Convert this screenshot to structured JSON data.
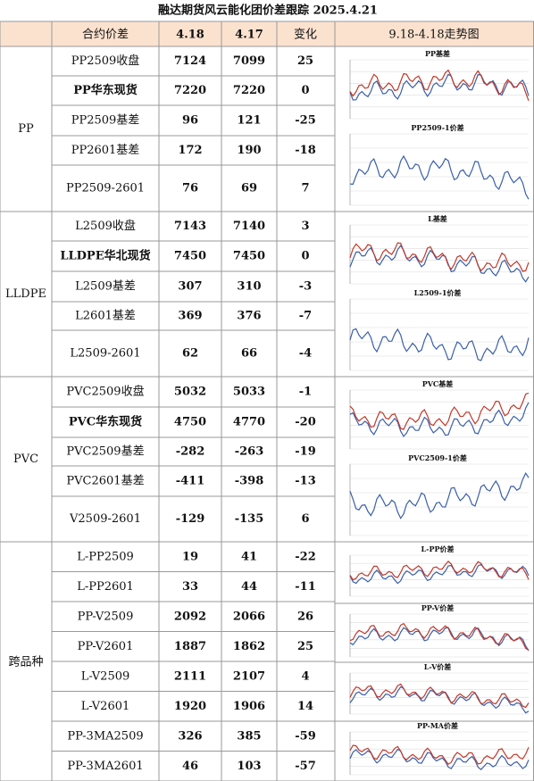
{
  "title": "融达期货风云能化团价差跟踪  2025.4.21",
  "header": {
    "name": "合约价差",
    "col1": "4.18",
    "col2": "4.17",
    "change": "变化",
    "chart": "9.18-4.18走势图"
  },
  "groups": [
    {
      "name": "PP",
      "rows": [
        {
          "name": "PP2509收盘",
          "v1": 7124,
          "v2": 7099,
          "change": 25
        },
        {
          "name": "PP华东现货",
          "v1": 7220,
          "v2": 7220,
          "change": 0,
          "bold": true
        },
        {
          "name": "PP2509基差",
          "v1": 96,
          "v2": 121,
          "change": -25
        },
        {
          "name": "PP2601基差",
          "v1": 172,
          "v2": 190,
          "change": -18
        },
        {
          "name": "PP2509-2601",
          "v1": 76,
          "v2": 69,
          "change": 7
        }
      ]
    },
    {
      "name": "LLDPE",
      "rows": [
        {
          "name": "L2509收盘",
          "v1": 7143,
          "v2": 7140,
          "change": 3
        },
        {
          "name": "LLDPE华北现货",
          "v1": 7450,
          "v2": 7450,
          "change": 0,
          "bold": true
        },
        {
          "name": "L2509基差",
          "v1": 307,
          "v2": 310,
          "change": -3
        },
        {
          "name": "L2601基差",
          "v1": 369,
          "v2": 376,
          "change": -7
        },
        {
          "name": "L2509-2601",
          "v1": 62,
          "v2": 66,
          "change": -4
        }
      ]
    },
    {
      "name": "PVC",
      "rows": [
        {
          "name": "PVC2509收盘",
          "v1": 5032,
          "v2": 5033,
          "change": -1
        },
        {
          "name": "PVC华东现货",
          "v1": 4750,
          "v2": 4770,
          "change": -20,
          "bold": true
        },
        {
          "name": "PVC2509基差",
          "v1": -282,
          "v2": -263,
          "change": -19
        },
        {
          "name": "PVC2601基差",
          "v1": -411,
          "v2": -398,
          "change": -13
        },
        {
          "name": "V2509-2601",
          "v1": -129,
          "v2": -135,
          "change": 6
        }
      ]
    },
    {
      "name": "跨品种",
      "rows": [
        {
          "name": "L-PP2509",
          "v1": 19,
          "v2": 41,
          "change": -22
        },
        {
          "name": "L-PP2601",
          "v1": 33,
          "v2": 44,
          "change": -11
        },
        {
          "name": "PP-V2509",
          "v1": 2092,
          "v2": 2066,
          "change": 26
        },
        {
          "name": "PP-V2601",
          "v1": 1887,
          "v2": 1862,
          "change": 25
        },
        {
          "name": "L-V2509",
          "v1": 2111,
          "v2": 2107,
          "change": 4
        },
        {
          "name": "L-V2601",
          "v1": 1920,
          "v2": 1906,
          "change": 14
        },
        {
          "name": "PP-3MA2509",
          "v1": 326,
          "v2": 385,
          "change": -59
        },
        {
          "name": "PP-3MA2601",
          "v1": 46,
          "v2": 103,
          "change": -57
        }
      ]
    }
  ],
  "charts": [
    {
      "title": "PP基差"
    },
    {
      "title": "PP2509-1价差"
    },
    {
      "title": "L基差"
    },
    {
      "title": "L2509-1价差"
    },
    {
      "title": "PVC基差"
    },
    {
      "title": "PVC2509-1价差"
    },
    {
      "title": "L-PP价差"
    },
    {
      "title": "PP-V价差"
    },
    {
      "title": "L-V价差"
    },
    {
      "title": "PP-MA价差"
    }
  ]
}
